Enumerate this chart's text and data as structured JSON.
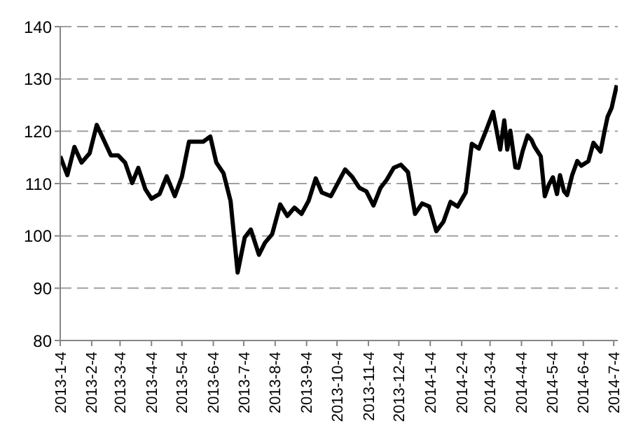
{
  "chart_data": {
    "type": "line",
    "x": [
      "2013-01-04",
      "2013-01-11",
      "2013-01-18",
      "2013-01-25",
      "2013-02-02",
      "2013-02-09",
      "2013-02-16",
      "2013-02-23",
      "2013-03-02",
      "2013-03-09",
      "2013-03-16",
      "2013-03-22",
      "2013-03-29",
      "2013-04-04",
      "2013-04-12",
      "2013-04-19",
      "2013-04-27",
      "2013-05-04",
      "2013-05-11",
      "2013-05-19",
      "2013-05-25",
      "2013-06-01",
      "2013-06-07",
      "2013-06-14",
      "2013-06-21",
      "2013-06-28",
      "2013-07-05",
      "2013-07-11",
      "2013-07-19",
      "2013-07-25",
      "2013-08-01",
      "2013-08-09",
      "2013-08-16",
      "2013-08-23",
      "2013-08-30",
      "2013-09-06",
      "2013-09-13",
      "2013-09-19",
      "2013-09-28",
      "2013-10-12",
      "2013-10-19",
      "2013-10-26",
      "2013-11-02",
      "2013-11-09",
      "2013-11-16",
      "2013-11-22",
      "2013-11-29",
      "2013-12-06",
      "2013-12-13",
      "2013-12-20",
      "2013-12-27",
      "2014-01-03",
      "2014-01-10",
      "2014-01-17",
      "2014-01-24",
      "2014-01-31",
      "2014-02-08",
      "2014-02-14",
      "2014-02-21",
      "2014-02-28",
      "2014-03-07",
      "2014-03-14",
      "2014-03-18",
      "2014-03-21",
      "2014-03-24",
      "2014-03-29",
      "2014-04-01",
      "2014-04-05",
      "2014-04-10",
      "2014-04-14",
      "2014-04-17",
      "2014-04-23",
      "2014-04-27",
      "2014-05-01",
      "2014-05-05",
      "2014-05-09",
      "2014-05-12",
      "2014-05-16",
      "2014-05-19",
      "2014-05-24",
      "2014-05-29",
      "2014-06-02",
      "2014-06-09",
      "2014-06-14",
      "2014-06-21",
      "2014-06-25",
      "2014-06-28",
      "2014-07-02",
      "2014-07-04",
      "2014-07-07"
    ],
    "series": [
      {
        "color": "#000000",
        "values": [
          115.2,
          111.6,
          117,
          114,
          115.8,
          121.2,
          118.3,
          115.4,
          115.4,
          114,
          110.1,
          113,
          108.9,
          107.1,
          108,
          111.4,
          107.6,
          111.3,
          118,
          118,
          118,
          119,
          114,
          112,
          106.7,
          93,
          99.7,
          101.2,
          96.4,
          98.7,
          100.3,
          106,
          103.8,
          105.4,
          104.2,
          106.7,
          111,
          108.3,
          107.6,
          112.7,
          111.3,
          109.2,
          108.5,
          105.8,
          109.2,
          110.7,
          113,
          113.6,
          112.2,
          104.2,
          106.2,
          105.6,
          100.9,
          102.7,
          106.5,
          105.6,
          108.3,
          117.6,
          116.7,
          120.1,
          123.7,
          116.5,
          122.1,
          116.5,
          120.1,
          113.1,
          113,
          116.1,
          119.2,
          118.3,
          117,
          115.2,
          107.6,
          109.8,
          111.2,
          108,
          111.6,
          108.5,
          107.8,
          111.6,
          114.3,
          113.4,
          114.3,
          117.8,
          116.1,
          120.1,
          122.8,
          124.5,
          126.3,
          128.8
        ]
      }
    ],
    "xlim": [
      "2013-01-04",
      "2014-07-08"
    ],
    "xticks": [
      {
        "value": "2013-01-04",
        "label": "2013-1-4"
      },
      {
        "value": "2013-02-04",
        "label": "2013-2-4"
      },
      {
        "value": "2013-03-04",
        "label": "2013-3-4"
      },
      {
        "value": "2013-04-04",
        "label": "2013-4-4"
      },
      {
        "value": "2013-05-04",
        "label": "2013-5-4"
      },
      {
        "value": "2013-06-04",
        "label": "2013-6-4"
      },
      {
        "value": "2013-07-04",
        "label": "2013-7-4"
      },
      {
        "value": "2013-08-04",
        "label": "2013-8-4"
      },
      {
        "value": "2013-09-04",
        "label": "2013-9-4"
      },
      {
        "value": "2013-10-04",
        "label": "2013-10-4"
      },
      {
        "value": "2013-11-04",
        "label": "2013-11-4"
      },
      {
        "value": "2013-12-04",
        "label": "2013-12-4"
      },
      {
        "value": "2014-01-04",
        "label": "2014-1-4"
      },
      {
        "value": "2014-02-04",
        "label": "2014-2-4"
      },
      {
        "value": "2014-03-04",
        "label": "2014-3-4"
      },
      {
        "value": "2014-04-04",
        "label": "2014-4-4"
      },
      {
        "value": "2014-05-04",
        "label": "2014-5-4"
      },
      {
        "value": "2014-06-04",
        "label": "2014-6-4"
      },
      {
        "value": "2014-07-04",
        "label": "2014-7-4"
      }
    ],
    "ylim": [
      80,
      140
    ],
    "yticks": [
      80,
      90,
      100,
      110,
      120,
      130,
      140
    ],
    "grid": "y",
    "legend": false,
    "marker": "none",
    "line_style": "solid"
  }
}
